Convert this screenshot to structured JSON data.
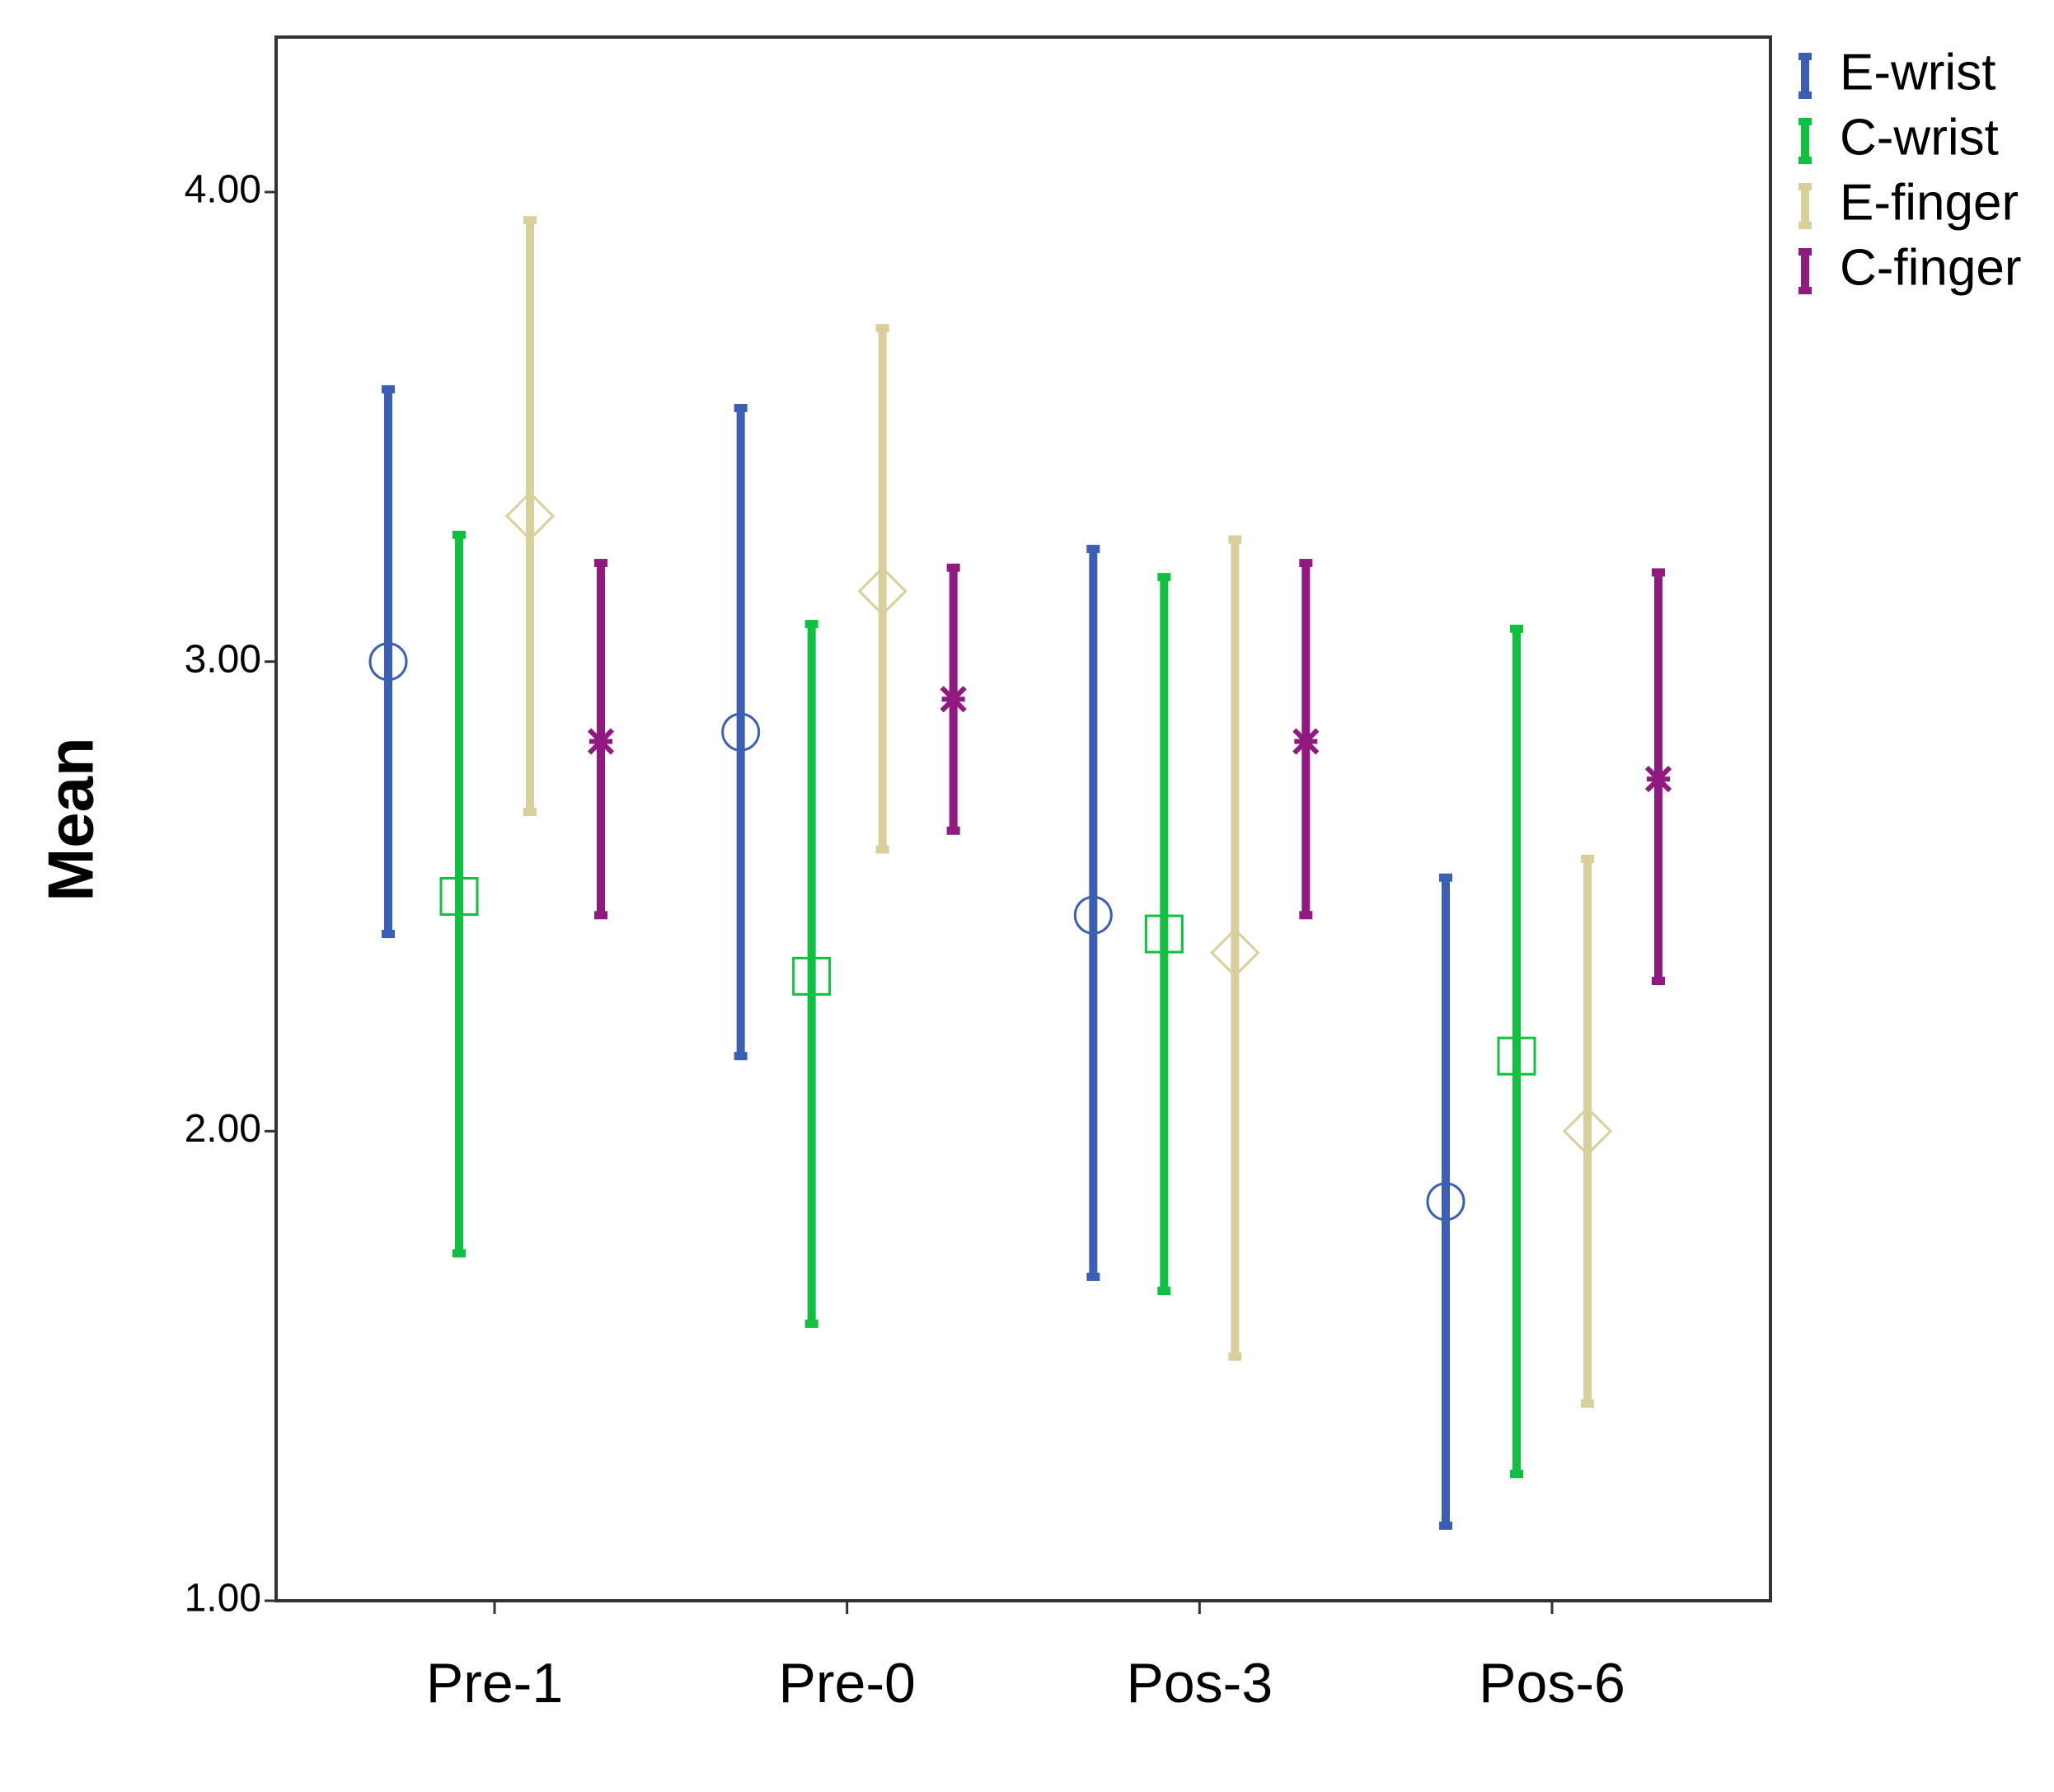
{
  "chart_data": {
    "type": "errorbar",
    "y_label": "Mean",
    "categories": [
      "Pre-1",
      "Pre-0",
      "Pos-3",
      "Pos-6"
    ],
    "ylim": [
      1,
      4.33
    ],
    "yticks": [
      {
        "value": 1,
        "label": "1.00"
      },
      {
        "value": 2,
        "label": "2.00"
      },
      {
        "value": 3,
        "label": "3.00"
      },
      {
        "value": 4,
        "label": "4.00"
      }
    ],
    "legend": "outside-top-right",
    "series": [
      {
        "name": "E-wrist",
        "color": "#3b5fb5",
        "marker": "circle",
        "values": [
          3.0,
          2.85,
          2.46,
          1.85
        ],
        "lower": [
          2.42,
          2.16,
          1.69,
          1.16
        ],
        "upper": [
          3.58,
          3.54,
          3.24,
          2.54
        ]
      },
      {
        "name": "C-wrist",
        "color": "#10c040",
        "marker": "square",
        "values": [
          2.5,
          2.33,
          2.42,
          2.16
        ],
        "lower": [
          1.74,
          1.59,
          1.66,
          1.27
        ],
        "upper": [
          3.27,
          3.08,
          3.18,
          3.07
        ]
      },
      {
        "name": "E-finger",
        "color": "#d8cf9a",
        "marker": "diamond",
        "values": [
          3.31,
          3.15,
          2.38,
          2.0
        ],
        "lower": [
          2.68,
          2.6,
          1.52,
          1.42
        ],
        "upper": [
          3.94,
          3.71,
          3.26,
          2.58
        ]
      },
      {
        "name": "C-finger",
        "color": "#901a80",
        "marker": "asterisk",
        "values": [
          2.83,
          2.92,
          2.83,
          2.75
        ],
        "lower": [
          2.46,
          2.64,
          2.46,
          2.32
        ],
        "upper": [
          3.21,
          3.2,
          3.21,
          3.19
        ]
      }
    ]
  }
}
